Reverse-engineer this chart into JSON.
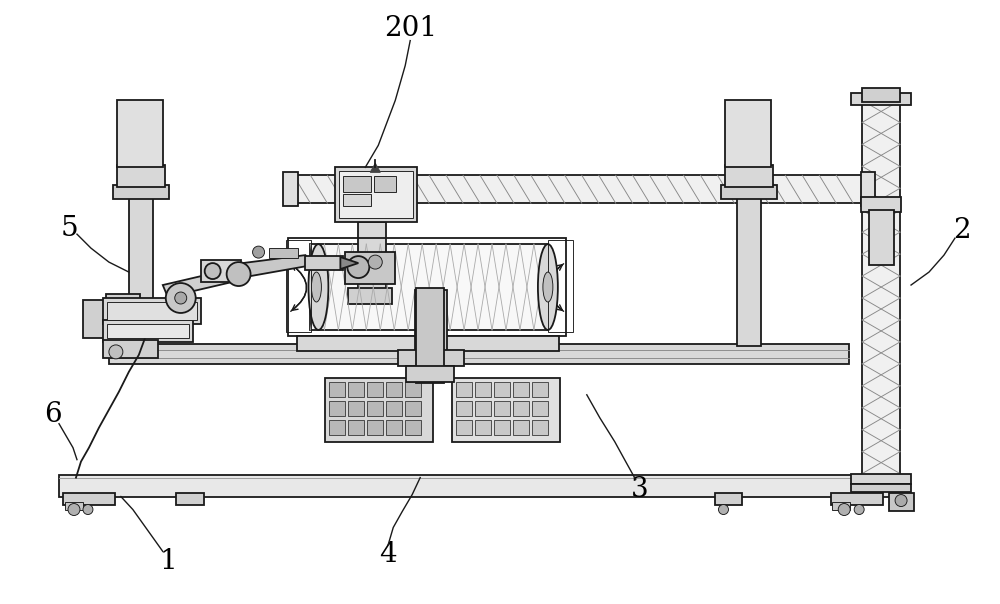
{
  "bg_color": "#ffffff",
  "line_color": "#1a1a1a",
  "label_color": "#000000",
  "label_fontsize": 20,
  "figsize": [
    10.0,
    6.04
  ]
}
